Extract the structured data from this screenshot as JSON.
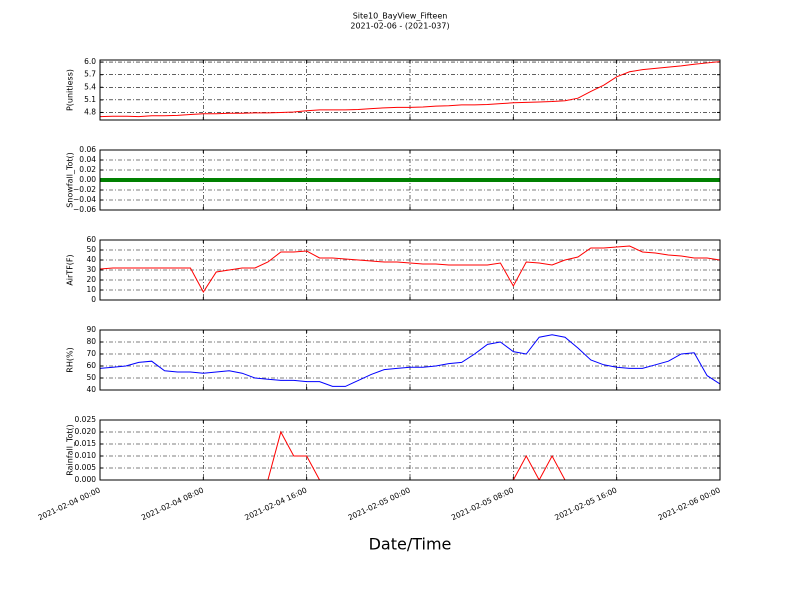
{
  "chart_data": {
    "type": "line",
    "title": "Site10_BayView_Fifteen",
    "subtitle": "2021-02-06 - (2021-037)",
    "xlabel": "Date/Time",
    "grid": true,
    "x": [
      0,
      1,
      2,
      3,
      4,
      5,
      6,
      7,
      8,
      9,
      10,
      11,
      12,
      13,
      14,
      15,
      16,
      17,
      18,
      19,
      20,
      21,
      22,
      23,
      24,
      25,
      26,
      27,
      28,
      29,
      30,
      31,
      32,
      33,
      34,
      35,
      36,
      37,
      38,
      39,
      40,
      41,
      42,
      43,
      44,
      45,
      46,
      47,
      48
    ],
    "xlim": [
      0,
      48
    ],
    "xticks": [
      {
        "value": 0,
        "label": "2021-02-04 00:00"
      },
      {
        "value": 8,
        "label": "2021-02-04 08:00"
      },
      {
        "value": 16,
        "label": "2021-02-04 16:00"
      },
      {
        "value": 24,
        "label": "2021-02-05 00:00"
      },
      {
        "value": 32,
        "label": "2021-02-05 08:00"
      },
      {
        "value": 40,
        "label": "2021-02-05 16:00"
      },
      {
        "value": 48,
        "label": "2021-02-06 00:00"
      }
    ],
    "panels": [
      {
        "ylabel": "P(unitless)",
        "ylim": [
          4.62,
          6.05
        ],
        "yticks": [
          {
            "value": 4.8,
            "label": "4.8"
          },
          {
            "value": 5.1,
            "label": "5.1"
          },
          {
            "value": 5.4,
            "label": "5.4"
          },
          {
            "value": 5.7,
            "label": "5.7"
          },
          {
            "value": 6.0,
            "label": "6.0"
          }
        ],
        "series": [
          {
            "color": "#ff0000",
            "values": [
              4.7,
              4.71,
              4.71,
              4.7,
              4.72,
              4.72,
              4.73,
              4.75,
              4.77,
              4.77,
              4.78,
              4.78,
              4.79,
              4.79,
              4.8,
              4.81,
              4.84,
              4.86,
              4.86,
              4.86,
              4.87,
              4.89,
              4.91,
              4.92,
              4.92,
              4.93,
              4.95,
              4.96,
              4.98,
              4.98,
              4.99,
              5.01,
              5.03,
              5.04,
              5.05,
              5.06,
              5.08,
              5.14,
              5.3,
              5.45,
              5.65,
              5.77,
              5.82,
              5.85,
              5.88,
              5.91,
              5.95,
              5.98,
              6.01
            ]
          }
        ]
      },
      {
        "ylabel": "Snowfall_Tot()",
        "ylim": [
          -0.06,
          0.06
        ],
        "yticks": [
          {
            "value": -0.06,
            "label": "−0.06"
          },
          {
            "value": -0.04,
            "label": "−0.04"
          },
          {
            "value": -0.02,
            "label": "−0.02"
          },
          {
            "value": 0,
            "label": "0.00"
          },
          {
            "value": 0.02,
            "label": "0.02"
          },
          {
            "value": 0.04,
            "label": "0.04"
          },
          {
            "value": 0.06,
            "label": "0.06"
          }
        ],
        "series": [
          {
            "color": "#008000",
            "width": 4,
            "values": [
              0,
              0,
              0,
              0,
              0,
              0,
              0,
              0,
              0,
              0,
              0,
              0,
              0,
              0,
              0,
              0,
              0,
              0,
              0,
              0,
              0,
              0,
              0,
              0,
              0,
              0,
              0,
              0,
              0,
              0,
              0,
              0,
              0,
              0,
              0,
              0,
              0,
              0,
              0,
              0,
              0,
              0,
              0,
              0,
              0,
              0,
              0,
              0,
              0
            ]
          }
        ]
      },
      {
        "ylabel": "AirTF(F)",
        "ylim": [
          0,
          60
        ],
        "yticks": [
          0,
          10,
          20,
          30,
          40,
          50,
          60
        ],
        "series": [
          {
            "color": "#ff0000",
            "values": [
              31,
              32,
              32,
              32,
              32,
              32,
              32,
              32,
              8,
              28,
              30,
              32,
              32,
              38,
              48,
              48,
              49,
              42,
              42,
              41,
              40,
              39,
              38,
              38,
              37,
              36,
              36,
              35,
              35,
              35,
              35,
              37,
              14,
              38,
              37,
              35,
              40,
              43,
              52,
              52,
              53,
              54,
              48,
              47,
              45,
              44,
              42,
              42,
              40
            ]
          }
        ]
      },
      {
        "ylabel": "RH(%)",
        "ylim": [
          40,
          90
        ],
        "yticks": [
          40,
          50,
          60,
          70,
          80,
          90
        ],
        "series": [
          {
            "color": "#0000ff",
            "values": [
              58,
              59,
              60,
              63,
              64,
              56,
              55,
              55,
              54,
              55,
              56,
              54,
              50,
              49,
              48,
              48,
              47,
              47,
              43,
              43,
              48,
              53,
              57,
              58,
              59,
              59,
              60,
              62,
              63,
              70,
              78,
              80,
              72,
              70,
              84,
              86,
              84,
              75,
              65,
              61,
              59,
              58,
              58,
              61,
              64,
              70,
              71,
              52,
              45
            ]
          }
        ]
      },
      {
        "ylabel": "Rainfall_Tot()",
        "ylim": [
          0,
          0.025
        ],
        "yticks": [
          {
            "value": 0,
            "label": "0.000"
          },
          {
            "value": 0.005,
            "label": "0.005"
          },
          {
            "value": 0.01,
            "label": "0.010"
          },
          {
            "value": 0.015,
            "label": "0.015"
          },
          {
            "value": 0.02,
            "label": "0.020"
          },
          {
            "value": 0.025,
            "label": "0.025"
          }
        ],
        "series": [
          {
            "color": "#ff0000",
            "values": [
              0,
              0,
              0,
              0,
              0,
              0,
              0,
              0,
              0,
              0,
              0,
              0,
              0,
              0,
              0.02,
              0.01,
              0.01,
              0,
              0,
              0,
              0,
              0,
              0,
              0,
              0,
              0,
              0,
              0,
              0,
              0,
              0,
              0,
              0,
              0.01,
              0,
              0.01,
              0,
              0,
              0,
              0,
              0,
              0,
              0,
              0,
              0,
              0,
              0,
              0,
              0
            ]
          }
        ]
      }
    ]
  }
}
